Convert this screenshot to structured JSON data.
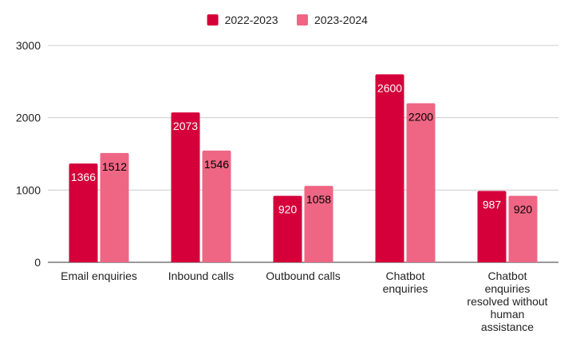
{
  "chart_data": {
    "type": "bar",
    "title": "",
    "xlabel": "",
    "ylabel": "",
    "ylim": [
      0,
      3000
    ],
    "yticks": [
      0,
      1000,
      2000,
      3000
    ],
    "grid": true,
    "legend_position": "top",
    "categories": [
      [
        "Email enquiries"
      ],
      [
        "Inbound calls"
      ],
      [
        "Outbound calls"
      ],
      [
        "Chatbot",
        "enquiries"
      ],
      [
        "Chatbot",
        "enquiries",
        "resolved without",
        "human",
        "assistance"
      ]
    ],
    "series": [
      {
        "name": "2022-2023",
        "color": "#d5003a",
        "label_color": "#ffffff",
        "values": [
          1366,
          2073,
          920,
          2600,
          987
        ]
      },
      {
        "name": "2023-2024",
        "color": "#ee6684",
        "label_color": "#000000",
        "values": [
          1512,
          1546,
          1058,
          2200,
          920
        ]
      }
    ]
  }
}
